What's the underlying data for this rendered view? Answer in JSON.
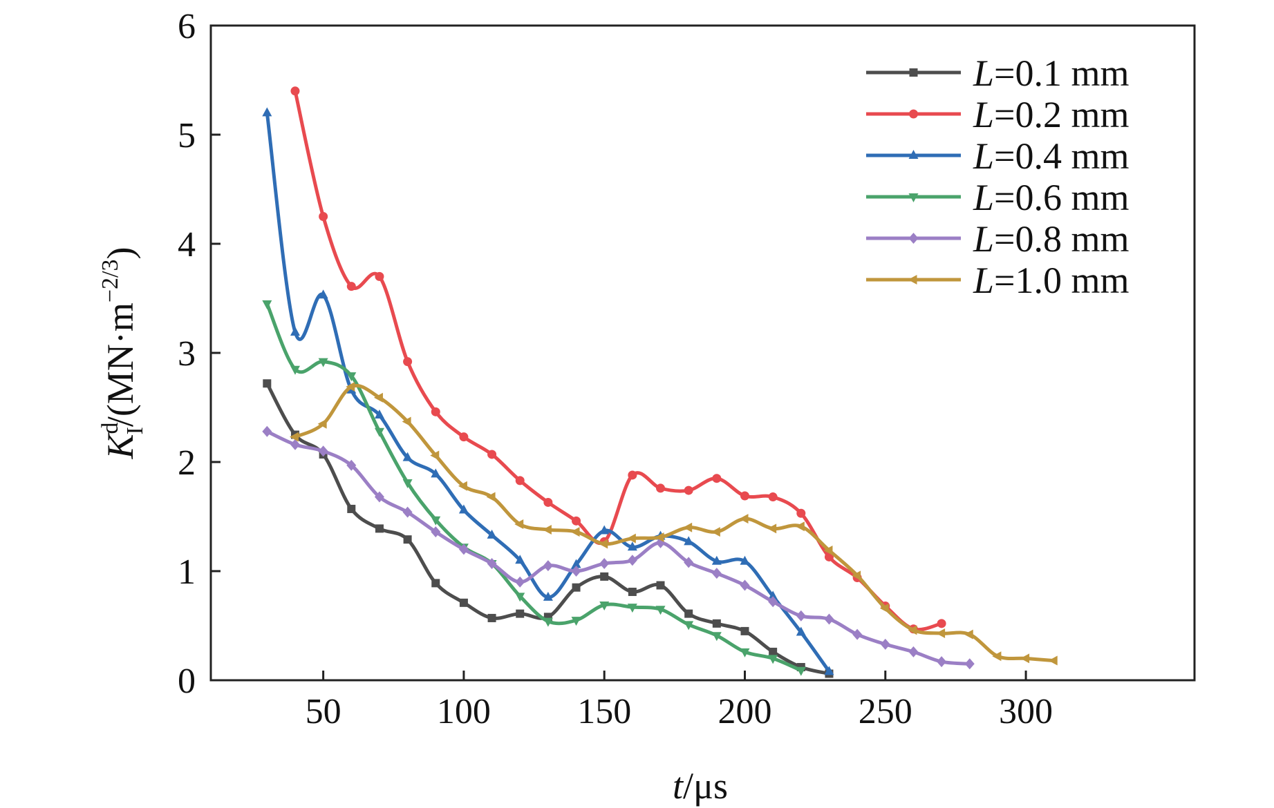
{
  "chart_data": {
    "type": "line",
    "title": "",
    "xlabel": {
      "italic": "t",
      "rest": "/μs"
    },
    "ylabel": {
      "K": "K",
      "sup": "d",
      "sub": "I",
      "rest": "/(MN·m",
      "exp": "−2/3",
      "close": ")"
    },
    "xlim": [
      10,
      360
    ],
    "ylim": [
      0,
      6
    ],
    "xticks": [
      50,
      100,
      150,
      200,
      250,
      300
    ],
    "yticks": [
      0,
      1,
      2,
      3,
      4,
      5,
      6
    ],
    "grid": false,
    "legend_position": "top-right",
    "series": [
      {
        "name": "L=0.1 mm",
        "label_italic": "L",
        "label_rest": "=0.1 mm",
        "color": "#4d4d4d",
        "marker": "square",
        "x": [
          30,
          40,
          50,
          60,
          70,
          80,
          90,
          100,
          110,
          120,
          130,
          140,
          150,
          160,
          170,
          180,
          190,
          200,
          210,
          220,
          230
        ],
        "y": [
          2.72,
          2.25,
          2.07,
          1.57,
          1.39,
          1.29,
          0.89,
          0.71,
          0.57,
          0.61,
          0.58,
          0.85,
          0.95,
          0.81,
          0.87,
          0.61,
          0.52,
          0.45,
          0.26,
          0.12,
          0.06
        ]
      },
      {
        "name": "L=0.2 mm",
        "label_italic": "L",
        "label_rest": "=0.2 mm",
        "color": "#e84a4f",
        "marker": "circle",
        "x": [
          40,
          50,
          60,
          70,
          80,
          90,
          100,
          110,
          120,
          130,
          140,
          150,
          160,
          170,
          180,
          190,
          200,
          210,
          220,
          230,
          240,
          250,
          260,
          270
        ],
        "y": [
          5.4,
          4.25,
          3.61,
          3.7,
          2.92,
          2.46,
          2.23,
          2.07,
          1.83,
          1.63,
          1.46,
          1.27,
          1.88,
          1.76,
          1.74,
          1.85,
          1.69,
          1.68,
          1.53,
          1.13,
          0.94,
          0.68,
          0.47,
          0.52
        ]
      },
      {
        "name": "L=0.4 mm",
        "label_italic": "L",
        "label_rest": "=0.4 mm",
        "color": "#2f6db5",
        "marker": "triangle-up",
        "x": [
          30,
          40,
          50,
          60,
          70,
          80,
          90,
          100,
          110,
          120,
          130,
          140,
          150,
          160,
          170,
          180,
          190,
          200,
          210,
          220,
          230
        ],
        "y": [
          5.2,
          3.19,
          3.53,
          2.66,
          2.43,
          2.04,
          1.89,
          1.56,
          1.33,
          1.1,
          0.76,
          1.06,
          1.37,
          1.22,
          1.32,
          1.27,
          1.09,
          1.09,
          0.77,
          0.44,
          0.08
        ]
      },
      {
        "name": "L=0.6 mm",
        "label_italic": "L",
        "label_rest": "=0.6 mm",
        "color": "#4aa36b",
        "marker": "triangle-down",
        "x": [
          30,
          40,
          50,
          60,
          70,
          80,
          90,
          100,
          110,
          120,
          130,
          140,
          150,
          160,
          170,
          180,
          190,
          200,
          210,
          220
        ],
        "y": [
          3.45,
          2.85,
          2.92,
          2.79,
          2.28,
          1.81,
          1.47,
          1.22,
          1.07,
          0.77,
          0.54,
          0.55,
          0.69,
          0.67,
          0.65,
          0.51,
          0.41,
          0.26,
          0.2,
          0.09
        ]
      },
      {
        "name": "L=0.8 mm",
        "label_italic": "L",
        "label_rest": "=0.8 mm",
        "color": "#9b7fc5",
        "marker": "diamond",
        "x": [
          30,
          40,
          50,
          60,
          70,
          80,
          90,
          100,
          110,
          120,
          130,
          140,
          150,
          160,
          170,
          180,
          190,
          200,
          210,
          220,
          230,
          240,
          250,
          260,
          270,
          280
        ],
        "y": [
          2.28,
          2.16,
          2.1,
          1.97,
          1.68,
          1.54,
          1.36,
          1.2,
          1.07,
          0.9,
          1.05,
          1.0,
          1.07,
          1.1,
          1.26,
          1.08,
          0.98,
          0.87,
          0.72,
          0.59,
          0.56,
          0.42,
          0.33,
          0.26,
          0.17,
          0.15
        ]
      },
      {
        "name": "L=1.0 mm",
        "label_italic": "L",
        "label_rest": "=1.0 mm",
        "color": "#c0963c",
        "marker": "triangle-left",
        "x": [
          40,
          50,
          60,
          70,
          80,
          90,
          100,
          110,
          120,
          130,
          140,
          150,
          160,
          170,
          180,
          190,
          200,
          210,
          220,
          230,
          240,
          250,
          260,
          270,
          280,
          290,
          300,
          310
        ],
        "y": [
          2.23,
          2.35,
          2.69,
          2.59,
          2.37,
          2.06,
          1.78,
          1.68,
          1.43,
          1.38,
          1.36,
          1.25,
          1.3,
          1.31,
          1.4,
          1.36,
          1.48,
          1.39,
          1.41,
          1.19,
          0.96,
          0.66,
          0.46,
          0.43,
          0.42,
          0.22,
          0.2,
          0.18
        ]
      }
    ]
  }
}
